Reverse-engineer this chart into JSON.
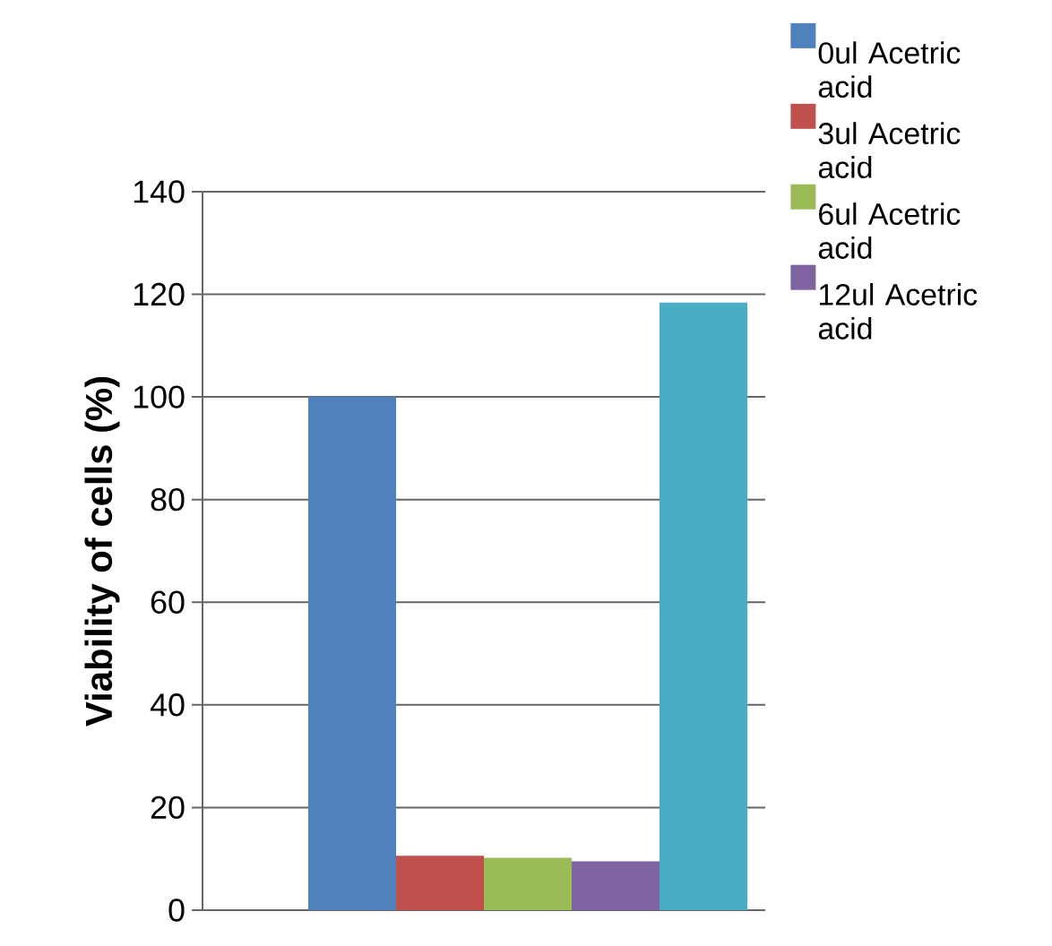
{
  "chart_data": {
    "type": "bar",
    "ylabel": "Viability of cells (%)",
    "categories": [
      null
    ],
    "series": [
      {
        "name": "0ul Acetric acid",
        "color": "#4f81bd",
        "values": [
          100
        ]
      },
      {
        "name": "3ul Acetric acid",
        "color": "#c0504d",
        "values": [
          10.6
        ]
      },
      {
        "name": "6ul Acetric acid",
        "color": "#9bbb59",
        "values": [
          10.2
        ]
      },
      {
        "name": "12ul Acetric acid",
        "color": "#8064a2",
        "values": [
          9.5
        ]
      },
      {
        "color": "#4bacc6",
        "values": [
          118.4
        ]
      }
    ],
    "ylim": [
      0,
      140
    ],
    "yticks": [
      0,
      20,
      40,
      60,
      80,
      100,
      120,
      140
    ],
    "grid": "y",
    "legend": "top right"
  }
}
